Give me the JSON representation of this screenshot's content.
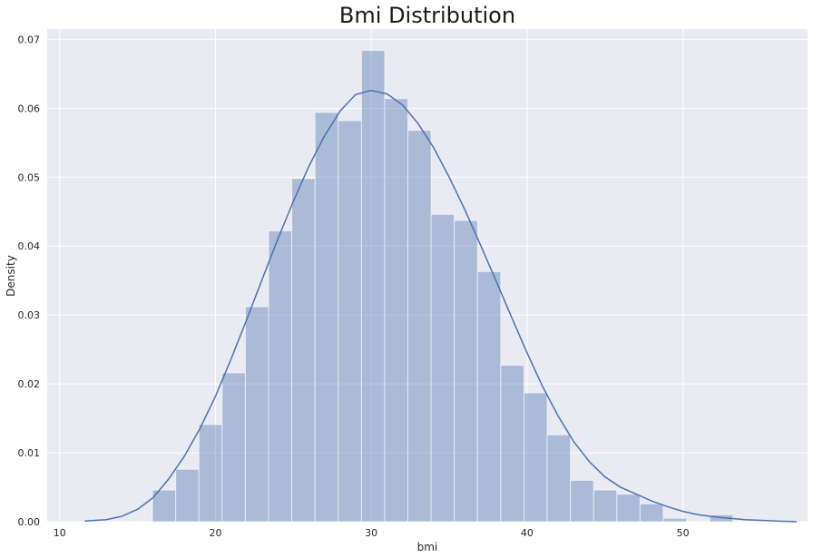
{
  "chart_data": {
    "type": "bar",
    "title": "Bmi Distribution",
    "xlabel": "bmi",
    "ylabel": "Density",
    "xlim": [
      9.2,
      58.0
    ],
    "ylim": [
      0,
      0.0715
    ],
    "xticks": [
      10,
      20,
      30,
      40,
      50
    ],
    "yticks": [
      0.0,
      0.01,
      0.02,
      0.03,
      0.04,
      0.05,
      0.06,
      0.07
    ],
    "ytick_labels": [
      "0.00",
      "0.01",
      "0.02",
      "0.03",
      "0.04",
      "0.05",
      "0.06",
      "0.07"
    ],
    "grid": true,
    "bins": [
      {
        "x0": 15.96,
        "x1": 17.45,
        "density": 0.0046
      },
      {
        "x0": 17.45,
        "x1": 18.94,
        "density": 0.0076
      },
      {
        "x0": 18.94,
        "x1": 20.43,
        "density": 0.0141
      },
      {
        "x0": 20.43,
        "x1": 21.92,
        "density": 0.0216
      },
      {
        "x0": 21.92,
        "x1": 23.41,
        "density": 0.0312
      },
      {
        "x0": 23.41,
        "x1": 24.9,
        "density": 0.0422
      },
      {
        "x0": 24.9,
        "x1": 26.39,
        "density": 0.0498
      },
      {
        "x0": 26.39,
        "x1": 27.88,
        "density": 0.0594
      },
      {
        "x0": 27.88,
        "x1": 29.37,
        "density": 0.0582
      },
      {
        "x0": 29.37,
        "x1": 30.86,
        "density": 0.0684
      },
      {
        "x0": 30.86,
        "x1": 32.35,
        "density": 0.0614
      },
      {
        "x0": 32.35,
        "x1": 33.84,
        "density": 0.0568
      },
      {
        "x0": 33.84,
        "x1": 35.33,
        "density": 0.0446
      },
      {
        "x0": 35.33,
        "x1": 36.82,
        "density": 0.0437
      },
      {
        "x0": 36.82,
        "x1": 38.31,
        "density": 0.0363
      },
      {
        "x0": 38.31,
        "x1": 39.8,
        "density": 0.0227
      },
      {
        "x0": 39.8,
        "x1": 41.29,
        "density": 0.0187
      },
      {
        "x0": 41.29,
        "x1": 42.78,
        "density": 0.0126
      },
      {
        "x0": 42.78,
        "x1": 44.27,
        "density": 0.006
      },
      {
        "x0": 44.27,
        "x1": 45.76,
        "density": 0.0046
      },
      {
        "x0": 45.76,
        "x1": 47.25,
        "density": 0.004
      },
      {
        "x0": 47.25,
        "x1": 48.74,
        "density": 0.0026
      },
      {
        "x0": 48.74,
        "x1": 50.23,
        "density": 0.0005
      },
      {
        "x0": 50.23,
        "x1": 51.72,
        "density": 0.0
      },
      {
        "x0": 51.72,
        "x1": 53.21,
        "density": 0.001
      }
    ],
    "kde": {
      "x": [
        11.6,
        13,
        14,
        15,
        16,
        17,
        18,
        19,
        20,
        21,
        22,
        23,
        24,
        25,
        26,
        27,
        28,
        29,
        30,
        31,
        32,
        33,
        34,
        35,
        36,
        37,
        38,
        39,
        40,
        41,
        42,
        43,
        44,
        45,
        46,
        47,
        48,
        49,
        50,
        51,
        52,
        53,
        54,
        55,
        56,
        57.3
      ],
      "y": [
        0.0001,
        0.0003,
        0.0008,
        0.0018,
        0.0035,
        0.0062,
        0.0095,
        0.0135,
        0.0182,
        0.0236,
        0.0293,
        0.0352,
        0.041,
        0.0465,
        0.0516,
        0.056,
        0.0596,
        0.062,
        0.0626,
        0.0621,
        0.0605,
        0.0578,
        0.0543,
        0.05,
        0.0453,
        0.0402,
        0.035,
        0.0297,
        0.0245,
        0.0196,
        0.0153,
        0.0116,
        0.0087,
        0.0065,
        0.005,
        0.004,
        0.003,
        0.0022,
        0.0015,
        0.001,
        0.0007,
        0.0005,
        0.0003,
        0.0002,
        0.0001,
        0.0
      ]
    },
    "colors": {
      "background": "#eaeaf2",
      "grid": "#ffffff",
      "bar_fill": "#4c72b0",
      "bar_opacity": 0.4,
      "line": "#4c72b0"
    }
  }
}
